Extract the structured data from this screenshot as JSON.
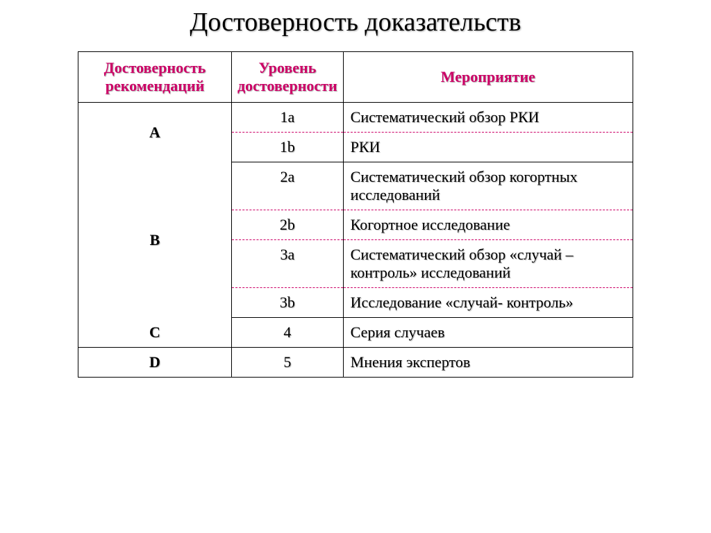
{
  "title": "Достоверность доказательств",
  "headers": {
    "col1": "Достоверность рекомендаций",
    "col2": "Уровень достоверности",
    "col3": "Мероприятие"
  },
  "groups": [
    {
      "rec": "A",
      "rows": [
        {
          "level": "1a",
          "event": "Систематический обзор РКИ"
        },
        {
          "level": "1b",
          "event": "РКИ"
        }
      ]
    },
    {
      "rec": "B",
      "rows": [
        {
          "level": "2a",
          "event": "Систематический обзор когортных исследований"
        },
        {
          "level": "2b",
          "event": "Когортное исследование"
        },
        {
          "level": "3a",
          "event": "Систематический обзор «случай – контроль» исследований"
        },
        {
          "level": "3b",
          "event": "Исследование «случай- контроль»"
        }
      ]
    },
    {
      "rec": "C",
      "rows": [
        {
          "level": "4",
          "event": "Серия случаев"
        }
      ]
    },
    {
      "rec": "D",
      "rows": [
        {
          "level": "5",
          "event": "Мнения экспертов"
        }
      ]
    }
  ],
  "colors": {
    "accent": "#cc0066",
    "text": "#000000",
    "background": "#ffffff"
  }
}
